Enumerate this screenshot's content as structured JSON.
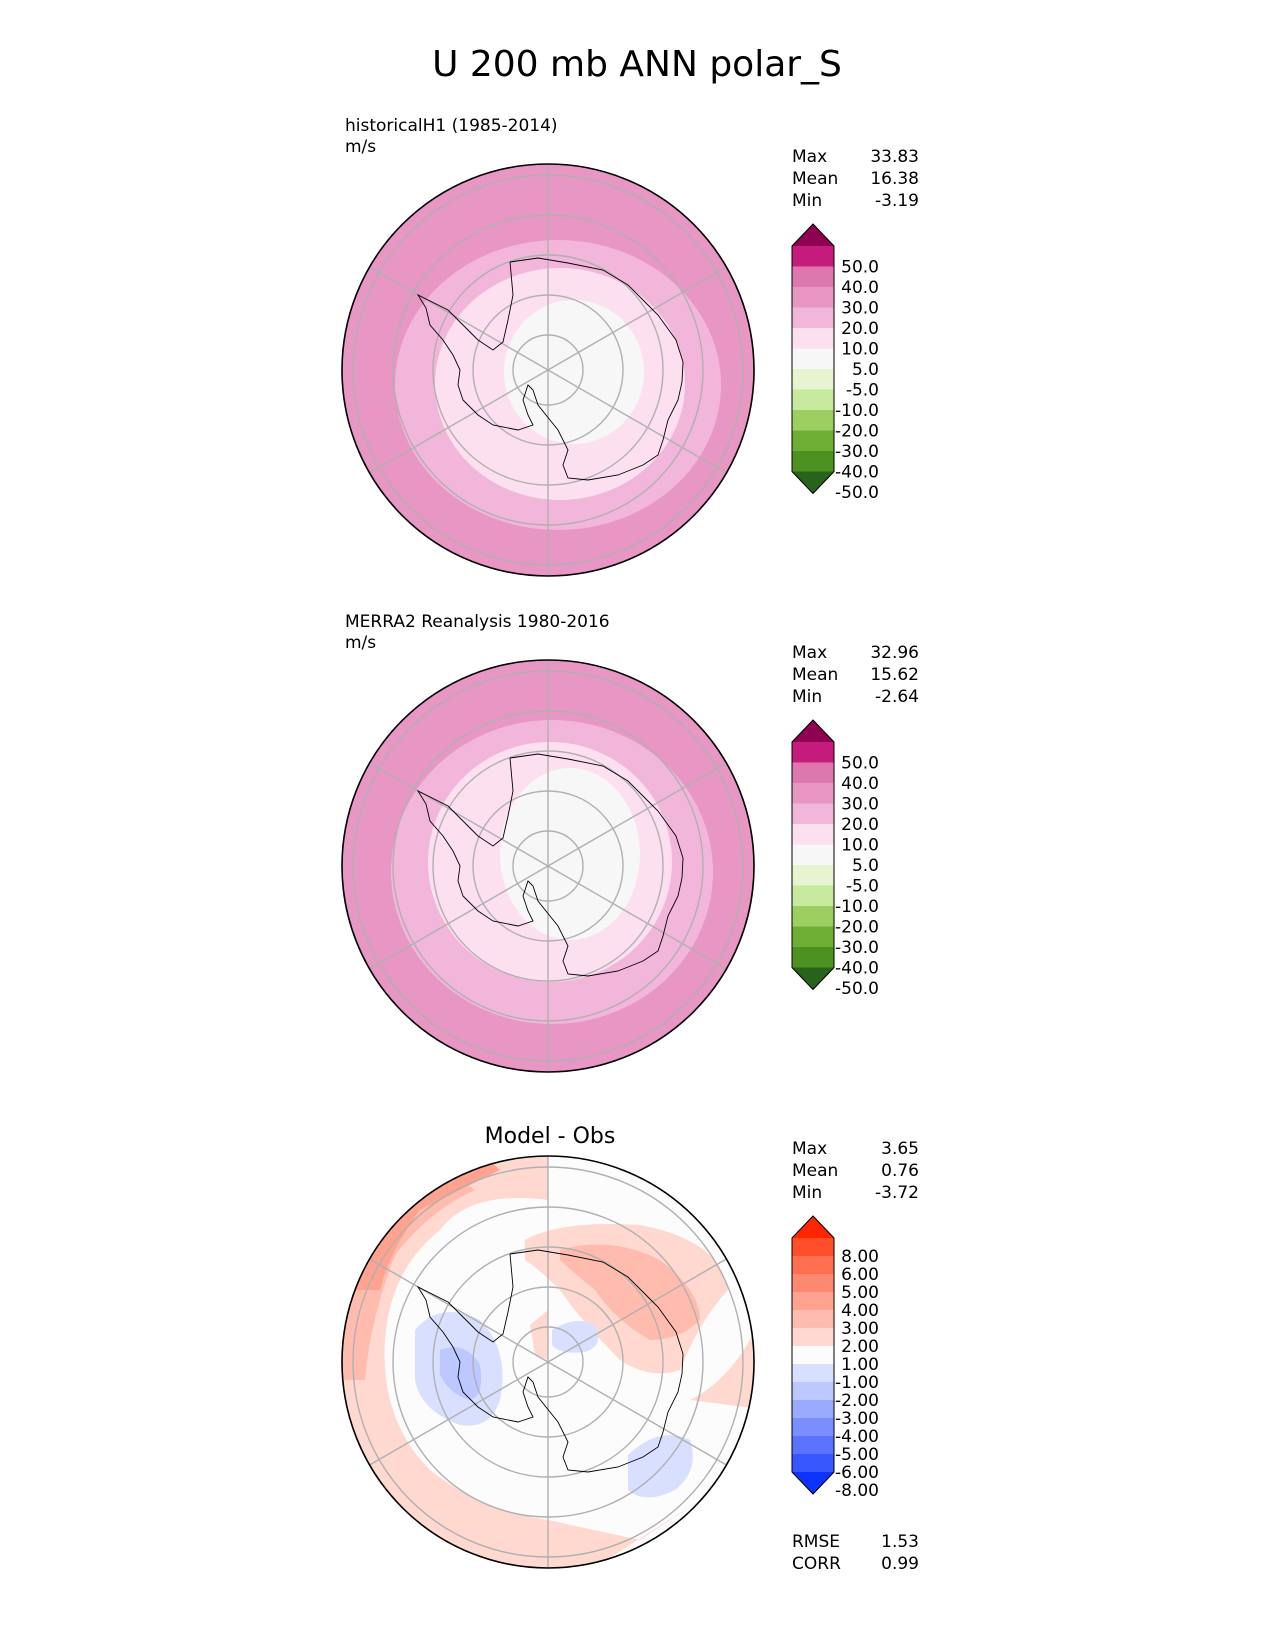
{
  "title": "U 200 mb ANN polar_S",
  "colors": {
    "land_outline": "#000000",
    "grid": "#b0b0b0",
    "frame": "#000000"
  },
  "chart_data": [
    {
      "type": "heatmap",
      "id": "test",
      "projection": "south-polar-stereographic",
      "title_left": "historicalH1 (1985-2014)",
      "units": "m/s",
      "stats": [
        {
          "label": "Max",
          "value": "33.83"
        },
        {
          "label": "Mean",
          "value": "16.38"
        },
        {
          "label": "Min",
          "value": "-3.19"
        }
      ],
      "colorbar": {
        "extend": "both",
        "ticks": [
          "50.0",
          "40.0",
          "30.0",
          "20.0",
          "10.0",
          "5.0",
          "-5.0",
          "-10.0",
          "-20.0",
          "-30.0",
          "-40.0",
          "-50.0"
        ],
        "colors": [
          "#8e0152",
          "#c51b7d",
          "#de77ae",
          "#e896c4",
          "#f1b6da",
          "#fde0ef",
          "#f7f7f7",
          "#e6f5d0",
          "#c7e9a0",
          "#9ccf5f",
          "#6fae35",
          "#4d9221",
          "#276419"
        ]
      },
      "field": {
        "rings": [
          {
            "value": 25,
            "color": "#e896c4"
          },
          {
            "value": 15,
            "color": "#f1b6da"
          },
          {
            "value": 8,
            "color": "#fde0ef"
          },
          {
            "value": 0,
            "color": "#f7f7f7"
          }
        ],
        "patches": [
          {
            "value": 35,
            "color": "#de77ae"
          }
        ]
      }
    },
    {
      "type": "heatmap",
      "id": "reference",
      "projection": "south-polar-stereographic",
      "title_left": "MERRA2 Reanalysis 1980-2016",
      "units": "m/s",
      "stats": [
        {
          "label": "Max",
          "value": "32.96"
        },
        {
          "label": "Mean",
          "value": "15.62"
        },
        {
          "label": "Min",
          "value": "-2.64"
        }
      ],
      "colorbar": {
        "extend": "both",
        "ticks": [
          "50.0",
          "40.0",
          "30.0",
          "20.0",
          "10.0",
          "5.0",
          "-5.0",
          "-10.0",
          "-20.0",
          "-30.0",
          "-40.0",
          "-50.0"
        ],
        "colors": [
          "#8e0152",
          "#c51b7d",
          "#de77ae",
          "#e896c4",
          "#f1b6da",
          "#fde0ef",
          "#f7f7f7",
          "#e6f5d0",
          "#c7e9a0",
          "#9ccf5f",
          "#6fae35",
          "#4d9221",
          "#276419"
        ]
      },
      "field": {
        "rings": [
          {
            "value": 25,
            "color": "#e896c4"
          },
          {
            "value": 15,
            "color": "#f1b6da"
          },
          {
            "value": 8,
            "color": "#fde0ef"
          },
          {
            "value": 0,
            "color": "#f7f7f7"
          }
        ],
        "patches": [
          {
            "value": 35,
            "color": "#de77ae"
          }
        ]
      }
    },
    {
      "type": "heatmap",
      "id": "diff",
      "projection": "south-polar-stereographic",
      "title_center": "Model - Obs",
      "stats": [
        {
          "label": "Max",
          "value": "3.65"
        },
        {
          "label": "Mean",
          "value": "0.76"
        },
        {
          "label": "Min",
          "value": "-3.72"
        }
      ],
      "metrics": [
        {
          "label": "RMSE",
          "value": "1.53"
        },
        {
          "label": "CORR",
          "value": "0.99"
        }
      ],
      "colorbar": {
        "extend": "both",
        "ticks": [
          "8.00",
          "6.00",
          "5.00",
          "4.00",
          "3.00",
          "2.00",
          "1.00",
          "-1.00",
          "-2.00",
          "-3.00",
          "-4.00",
          "-5.00",
          "-6.00",
          "-8.00"
        ],
        "colors": [
          "#ff2600",
          "#ff4e2a",
          "#ff6e4f",
          "#ff8870",
          "#ffa390",
          "#ffbcae",
          "#ffd9d0",
          "#fcfcfc",
          "#d9e0ff",
          "#bcc8ff",
          "#99aaff",
          "#7a8eff",
          "#5a72ff",
          "#3856ff",
          "#0d33ff"
        ]
      },
      "field": {
        "rings": [],
        "patches": [
          {
            "value": 1.5,
            "color": "#ffd9d0"
          },
          {
            "value": 2.5,
            "color": "#ffbcae"
          },
          {
            "value": 3.5,
            "color": "#ffa390"
          },
          {
            "value": -1.5,
            "color": "#d9e0ff"
          },
          {
            "value": -2.5,
            "color": "#bcc8ff"
          }
        ]
      }
    }
  ]
}
